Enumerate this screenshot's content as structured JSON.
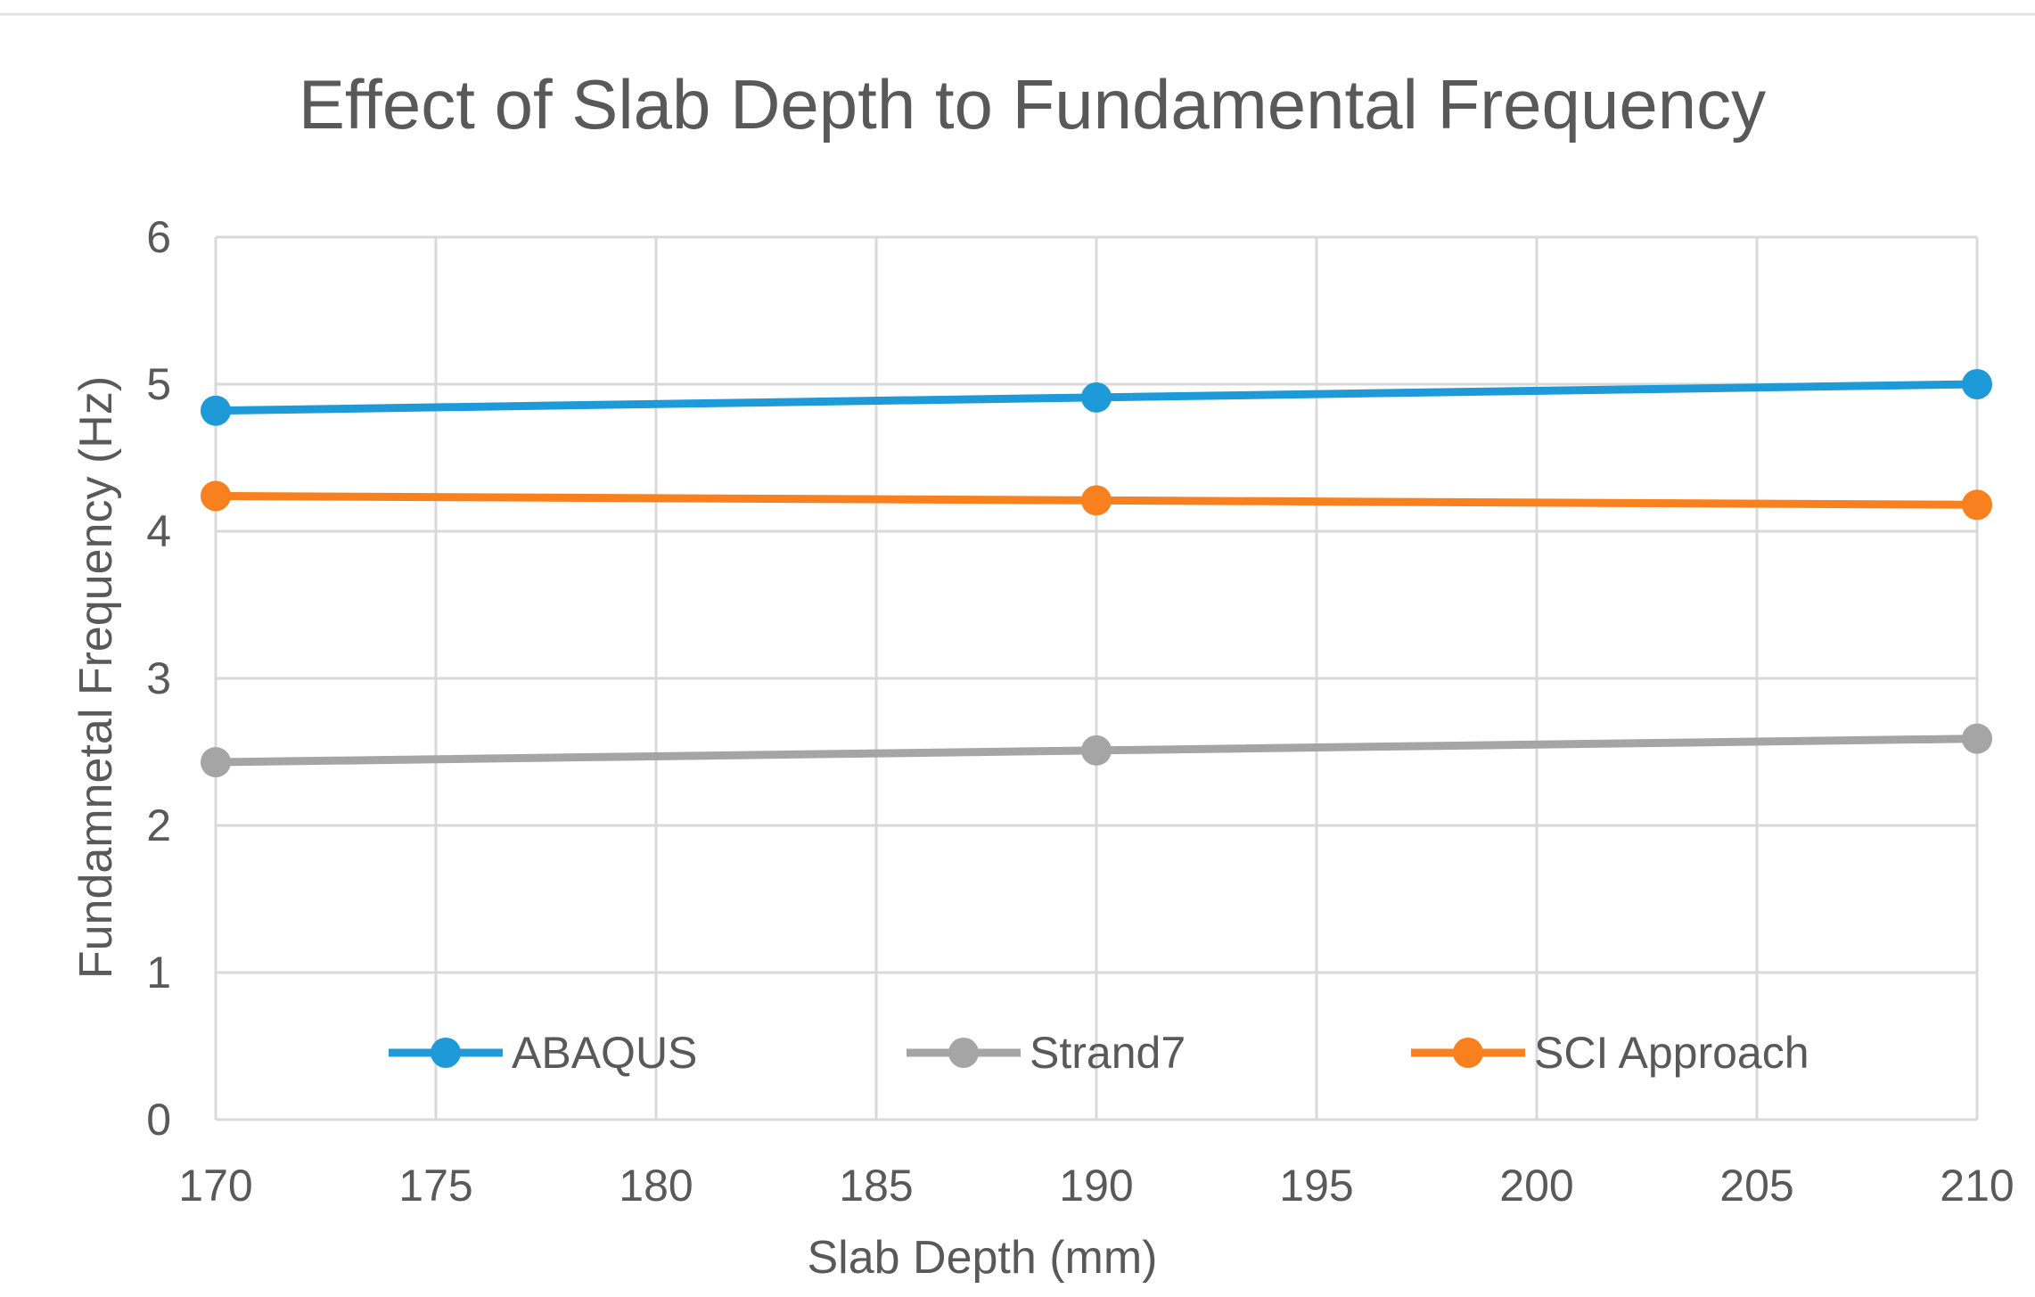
{
  "chart_data": {
    "type": "line",
    "title": "Effect of Slab Depth to Fundamental Frequency",
    "xlabel": "Slab Depth (mm)",
    "ylabel": "Fundamnetal Frequency (Hz)",
    "x": [
      170,
      190,
      210
    ],
    "xlim": [
      170,
      210
    ],
    "ylim": [
      0,
      6
    ],
    "xticks": [
      170,
      175,
      180,
      185,
      190,
      195,
      200,
      205,
      210
    ],
    "yticks": [
      0,
      1,
      2,
      3,
      4,
      5,
      6
    ],
    "grid": true,
    "legend_position": "bottom-inside",
    "series": [
      {
        "name": "ABAQUS",
        "values": [
          4.82,
          4.91,
          5.0
        ],
        "color": "#1f9ad9"
      },
      {
        "name": "Strand7",
        "values": [
          2.43,
          2.51,
          2.59
        ],
        "color": "#a5a5a5"
      },
      {
        "name": "SCI Approach",
        "values": [
          4.24,
          4.21,
          4.18
        ],
        "color": "#f8801f"
      }
    ]
  }
}
